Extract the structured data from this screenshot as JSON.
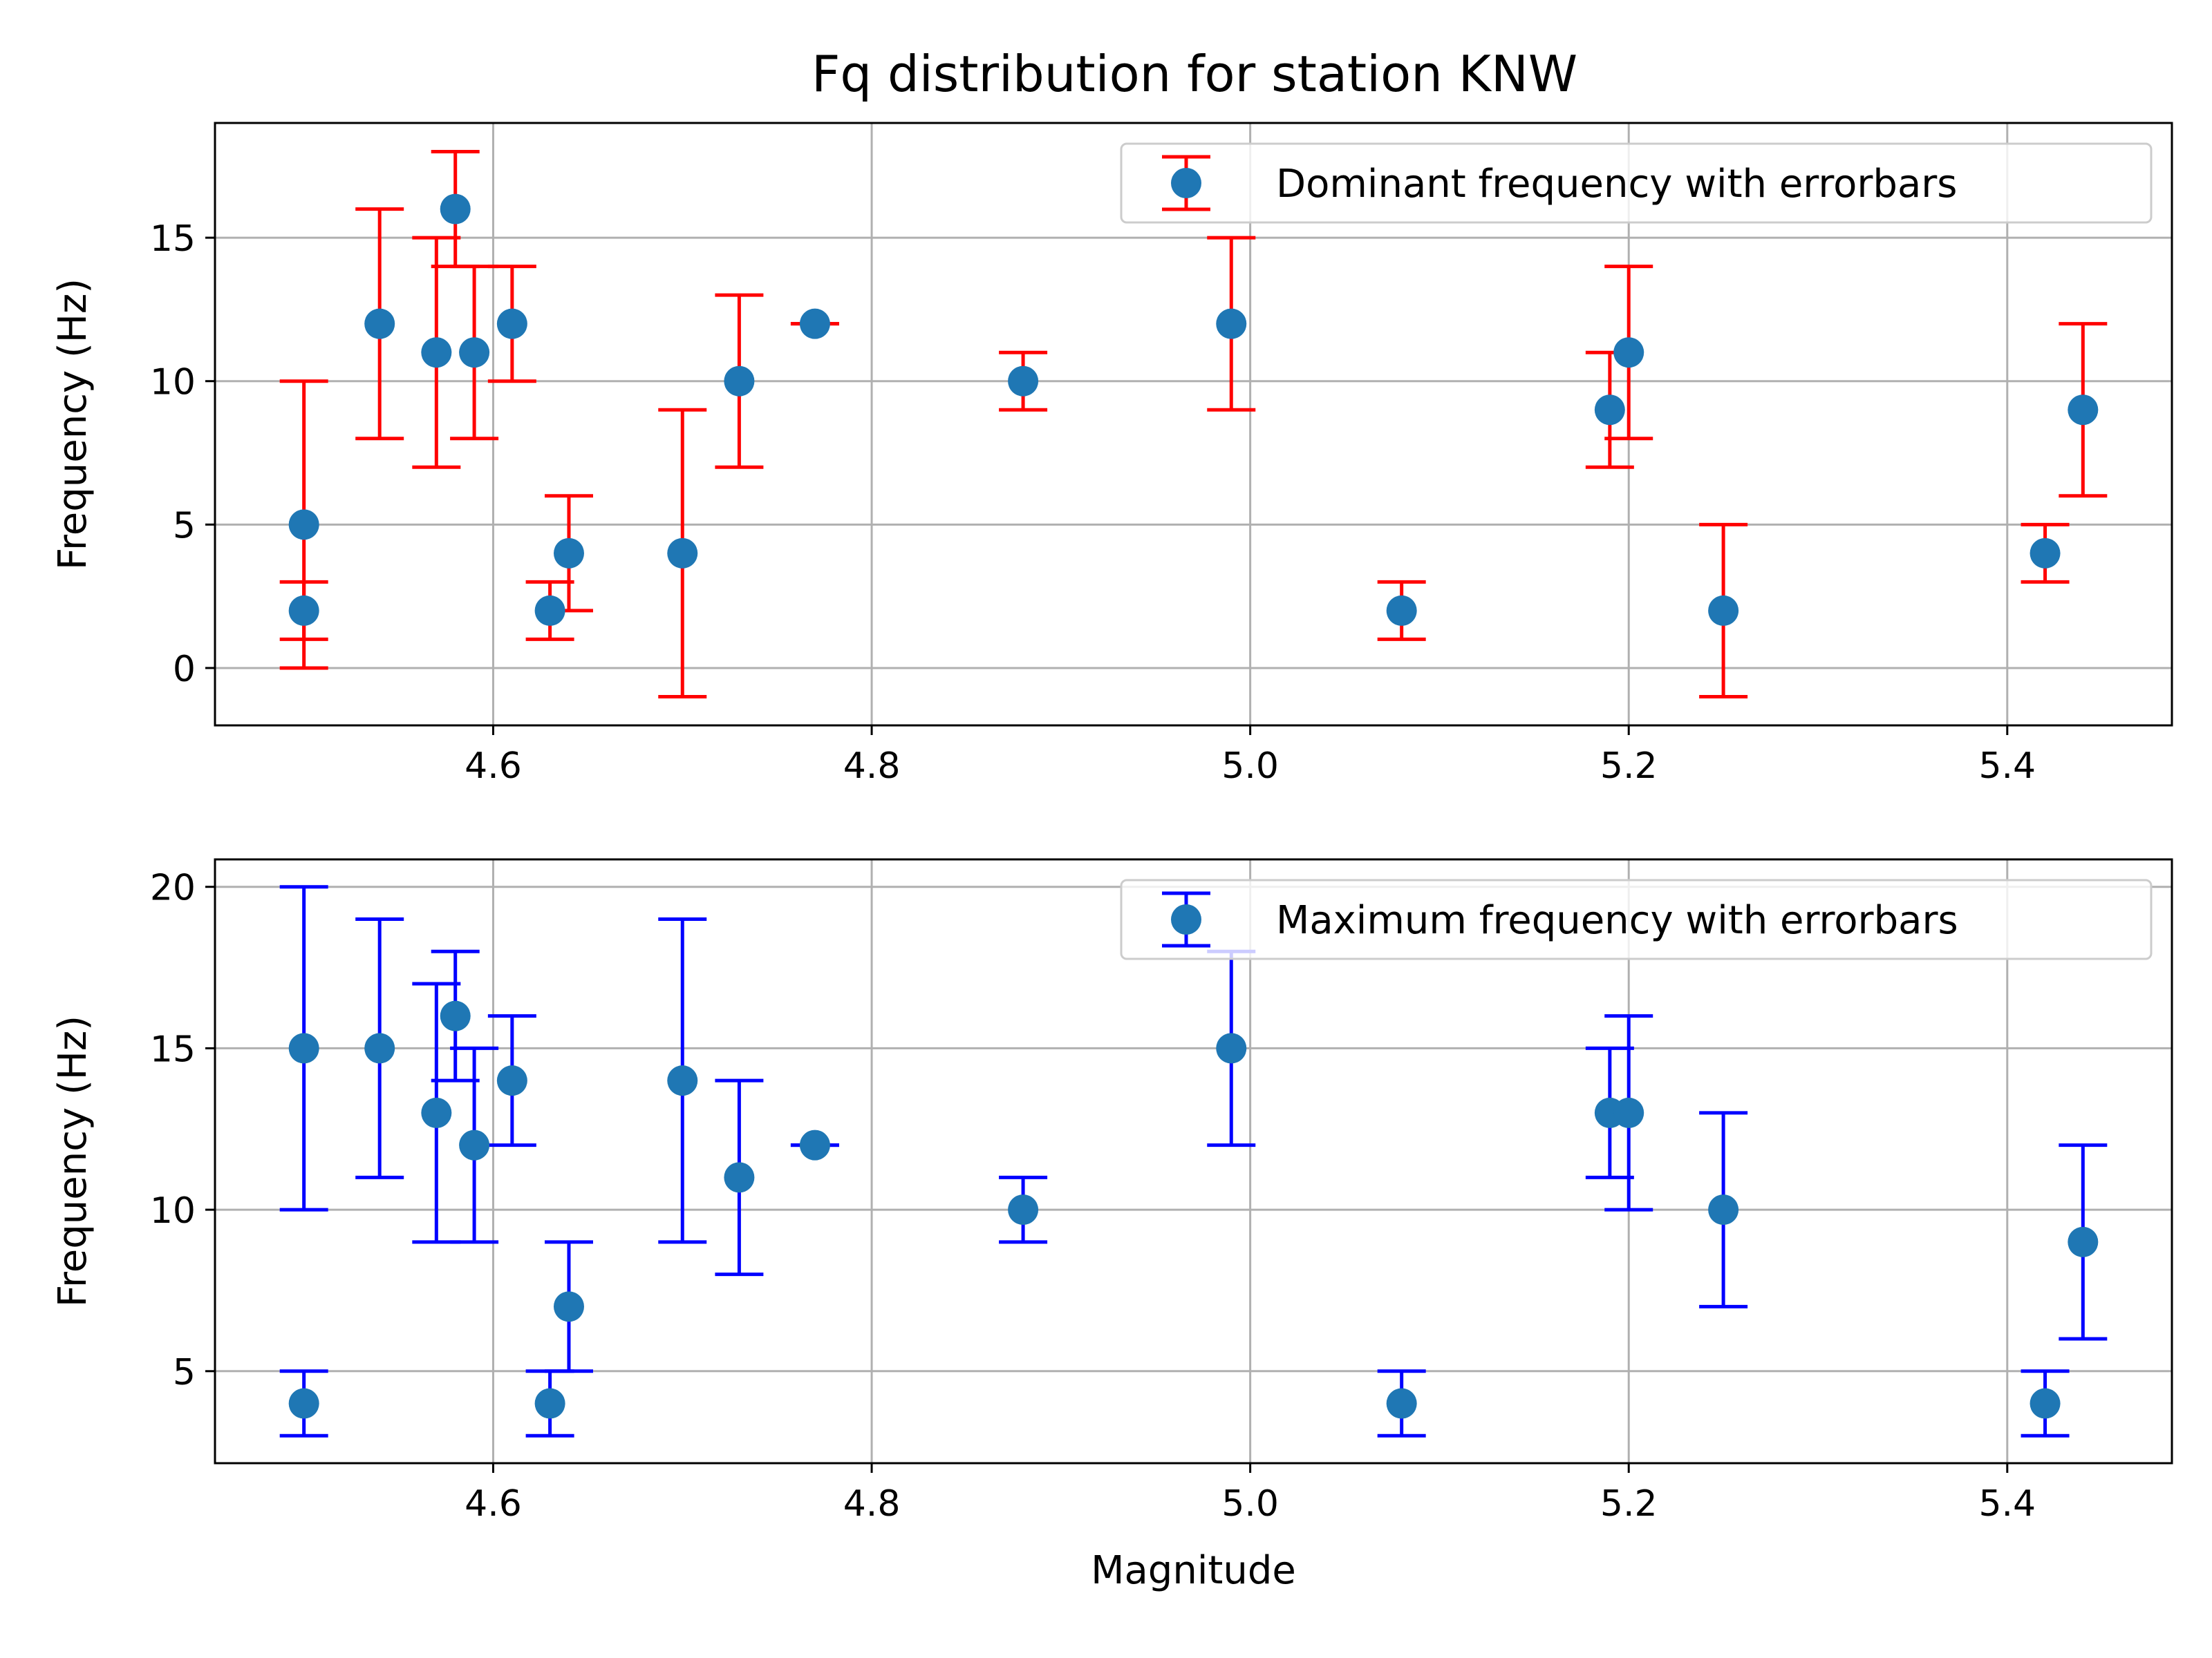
{
  "figure": {
    "title": "Fq distribution for station KNW"
  },
  "colors": {
    "marker": "#1f77b4",
    "dominant_errorbar": "#ff0000",
    "maximum_errorbar": "#0000ff",
    "grid": "#b0b0b0",
    "legend_border": "#cccccc"
  },
  "chart_data": [
    {
      "type": "scatter",
      "title": "Fq distribution for station KNW",
      "xlabel": "",
      "ylabel": "Frequency (Hz)",
      "xlim": [
        4.453,
        5.487
      ],
      "ylim": [
        -2,
        19
      ],
      "xticks": [
        4.6,
        4.8,
        5.0,
        5.2,
        5.4
      ],
      "xtick_labels": [
        "4.6",
        "4.8",
        "5.0",
        "5.2",
        "5.4"
      ],
      "yticks": [
        0,
        5,
        10,
        15
      ],
      "ytick_labels": [
        "0",
        "5",
        "10",
        "15"
      ],
      "grid": true,
      "legend": "top-right",
      "series": [
        {
          "name": "Dominant frequency with errorbars",
          "color": "#1f77b4",
          "errorbar_color": "#ff0000",
          "x": [
            4.5,
            4.5,
            4.54,
            4.57,
            4.58,
            4.59,
            4.61,
            4.63,
            4.64,
            4.7,
            4.73,
            4.77,
            4.88,
            4.99,
            5.08,
            5.19,
            5.2,
            5.25,
            5.42,
            5.44
          ],
          "y": [
            5,
            2,
            12,
            11,
            16,
            11,
            12,
            2,
            4,
            4,
            10,
            12,
            10,
            12,
            2,
            9,
            11,
            2,
            4,
            9
          ],
          "err": [
            5,
            1,
            4,
            4,
            2,
            3,
            2,
            1,
            2,
            5,
            3,
            0,
            1,
            3,
            1,
            2,
            3,
            3,
            1,
            3
          ]
        }
      ]
    },
    {
      "type": "scatter",
      "title": "",
      "xlabel": "Magnitude",
      "ylabel": "Frequency (Hz)",
      "xlim": [
        4.453,
        5.487
      ],
      "ylim": [
        2.15,
        20.85
      ],
      "xticks": [
        4.6,
        4.8,
        5.0,
        5.2,
        5.4
      ],
      "xtick_labels": [
        "4.6",
        "4.8",
        "5.0",
        "5.2",
        "5.4"
      ],
      "yticks": [
        5,
        10,
        15,
        20
      ],
      "ytick_labels": [
        "5",
        "10",
        "15",
        "20"
      ],
      "grid": true,
      "legend": "top-right",
      "series": [
        {
          "name": "Maximum frequency with errorbars",
          "color": "#1f77b4",
          "errorbar_color": "#0000ff",
          "x": [
            4.5,
            4.5,
            4.54,
            4.57,
            4.58,
            4.59,
            4.61,
            4.63,
            4.64,
            4.7,
            4.73,
            4.77,
            4.88,
            4.99,
            5.08,
            5.19,
            5.2,
            5.25,
            5.42,
            5.44
          ],
          "y": [
            15,
            4,
            15,
            13,
            16,
            12,
            14,
            4,
            7,
            14,
            11,
            12,
            10,
            15,
            4,
            13,
            13,
            10,
            4,
            9
          ],
          "err": [
            5,
            1,
            4,
            4,
            2,
            3,
            2,
            1,
            2,
            5,
            3,
            0,
            1,
            3,
            1,
            2,
            3,
            3,
            1,
            3
          ]
        }
      ]
    }
  ]
}
